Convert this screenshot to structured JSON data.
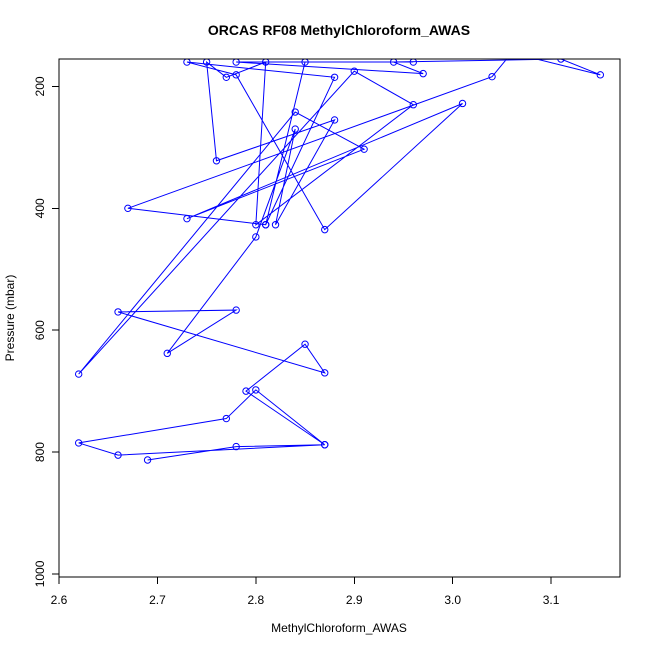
{
  "chart_data": {
    "type": "line",
    "title": "ORCAS RF08 MethylChloroform_AWAS",
    "xlabel": "MethylChloroform_AWAS",
    "ylabel": "Pressure (mbar)",
    "xlim": [
      2.6,
      3.17
    ],
    "ylim": [
      1005,
      155
    ],
    "y_reversed": true,
    "x_ticks": [
      2.6,
      2.7,
      2.8,
      2.9,
      3.0,
      3.1
    ],
    "x_tick_labels": [
      "2.6",
      "2.7",
      "2.8",
      "2.9",
      "3.0",
      "3.1"
    ],
    "y_ticks": [
      200,
      400,
      600,
      800,
      1000
    ],
    "y_tick_labels": [
      "200",
      "400",
      "600",
      "800",
      "1000"
    ],
    "grid": false,
    "legend": "none",
    "marker": "open-circle",
    "color": "#0000ff",
    "series": [
      {
        "x": [
          2.69,
          2.78,
          2.87,
          2.66,
          2.62,
          2.77,
          2.8,
          2.87,
          2.79,
          2.85,
          2.87,
          2.66,
          2.78,
          2.71,
          2.8,
          2.84,
          2.82,
          2.88,
          2.76,
          2.75,
          2.77,
          2.81,
          2.8,
          2.96,
          2.9,
          2.62,
          2.84,
          2.91,
          2.73,
          3.01,
          2.87,
          2.78,
          2.73,
          2.88,
          2.81,
          2.85,
          2.81,
          2.67,
          3.04,
          3.06,
          3.15,
          3.11,
          2.94,
          2.97,
          2.78,
          2.96
        ],
        "y": [
          813,
          791,
          788,
          805,
          785,
          745,
          698,
          788,
          700,
          623,
          670,
          570,
          567,
          638,
          447,
          270,
          427,
          255,
          322,
          160,
          185,
          160,
          427,
          230,
          175,
          672,
          242,
          303,
          417,
          228,
          435,
          181,
          160,
          185,
          427,
          160,
          427,
          400,
          184,
          145,
          181,
          155,
          160,
          179,
          160,
          160
        ]
      }
    ]
  }
}
